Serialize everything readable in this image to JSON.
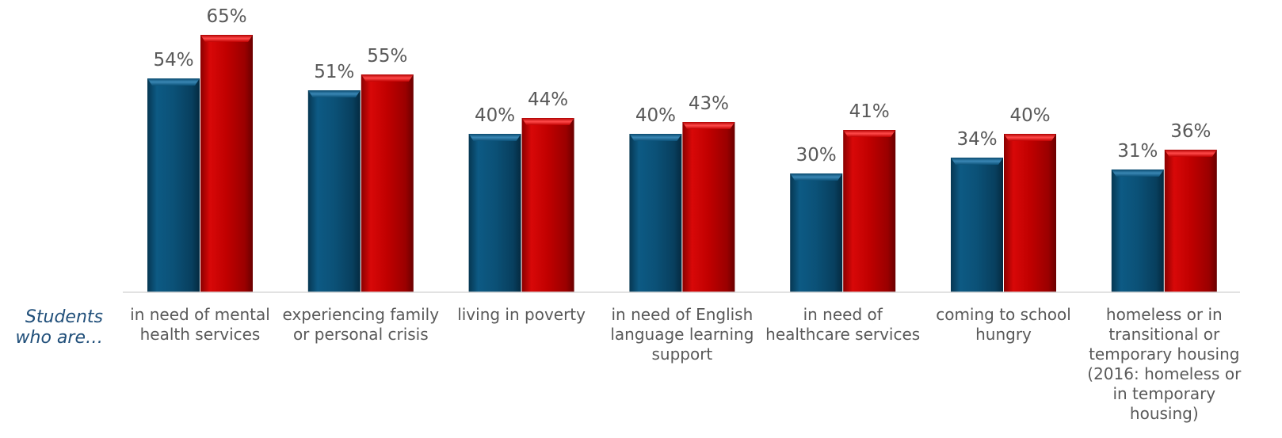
{
  "chart_data": {
    "type": "bar",
    "row_label": "Students who are…",
    "categories": [
      "in need of mental health services",
      "experiencing family or personal crisis",
      "living in poverty",
      "in need of English language learning support",
      "in need of healthcare services",
      "coming to school hungry",
      "homeless or in transitional or temporary housing (2016: homeless or in temporary housing)"
    ],
    "series": [
      {
        "color": "#0b5177",
        "values": [
          54,
          51,
          40,
          40,
          30,
          34,
          31
        ],
        "labels": [
          "54%",
          "51%",
          "40%",
          "40%",
          "30%",
          "34%",
          "31%"
        ]
      },
      {
        "color": "#c00000",
        "values": [
          65,
          55,
          44,
          43,
          41,
          40,
          36
        ],
        "labels": [
          "65%",
          "55%",
          "44%",
          "43%",
          "41%",
          "40%",
          "36%"
        ]
      }
    ],
    "ylim": [
      0,
      70
    ],
    "grid": false,
    "legend": "none",
    "value_format": "percent"
  }
}
